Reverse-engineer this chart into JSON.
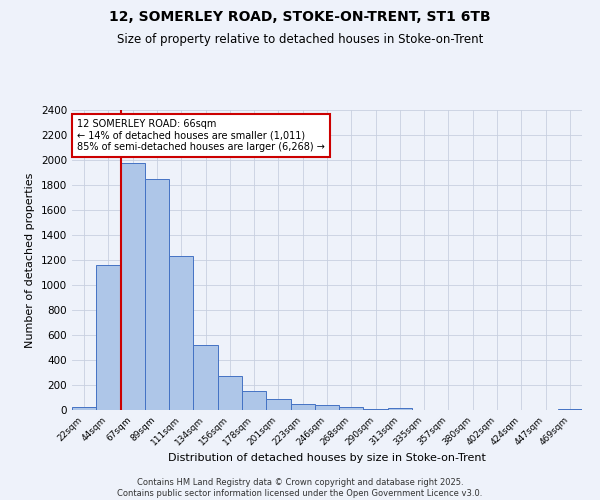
{
  "title1": "12, SOMERLEY ROAD, STOKE-ON-TRENT, ST1 6TB",
  "title2": "Size of property relative to detached houses in Stoke-on-Trent",
  "xlabel": "Distribution of detached houses by size in Stoke-on-Trent",
  "ylabel": "Number of detached properties",
  "categories": [
    "22sqm",
    "44sqm",
    "67sqm",
    "89sqm",
    "111sqm",
    "134sqm",
    "156sqm",
    "178sqm",
    "201sqm",
    "223sqm",
    "246sqm",
    "268sqm",
    "290sqm",
    "313sqm",
    "335sqm",
    "357sqm",
    "380sqm",
    "402sqm",
    "424sqm",
    "447sqm",
    "469sqm"
  ],
  "values": [
    25,
    1160,
    1975,
    1850,
    1230,
    520,
    275,
    155,
    90,
    50,
    42,
    22,
    12,
    20,
    0,
    0,
    0,
    0,
    0,
    0,
    10
  ],
  "bar_color": "#aec6e8",
  "bar_edge_color": "#4472c4",
  "red_line_index": 2,
  "annotation_title": "12 SOMERLEY ROAD: 66sqm",
  "annotation_line1": "← 14% of detached houses are smaller (1,011)",
  "annotation_line2": "85% of semi-detached houses are larger (6,268) →",
  "annotation_box_color": "#ffffff",
  "annotation_box_edge": "#cc0000",
  "ylim": [
    0,
    2400
  ],
  "yticks": [
    0,
    200,
    400,
    600,
    800,
    1000,
    1200,
    1400,
    1600,
    1800,
    2000,
    2200,
    2400
  ],
  "grid_color": "#c8d0e0",
  "bg_color": "#eef2fa",
  "footer1": "Contains HM Land Registry data © Crown copyright and database right 2025.",
  "footer2": "Contains public sector information licensed under the Open Government Licence v3.0."
}
